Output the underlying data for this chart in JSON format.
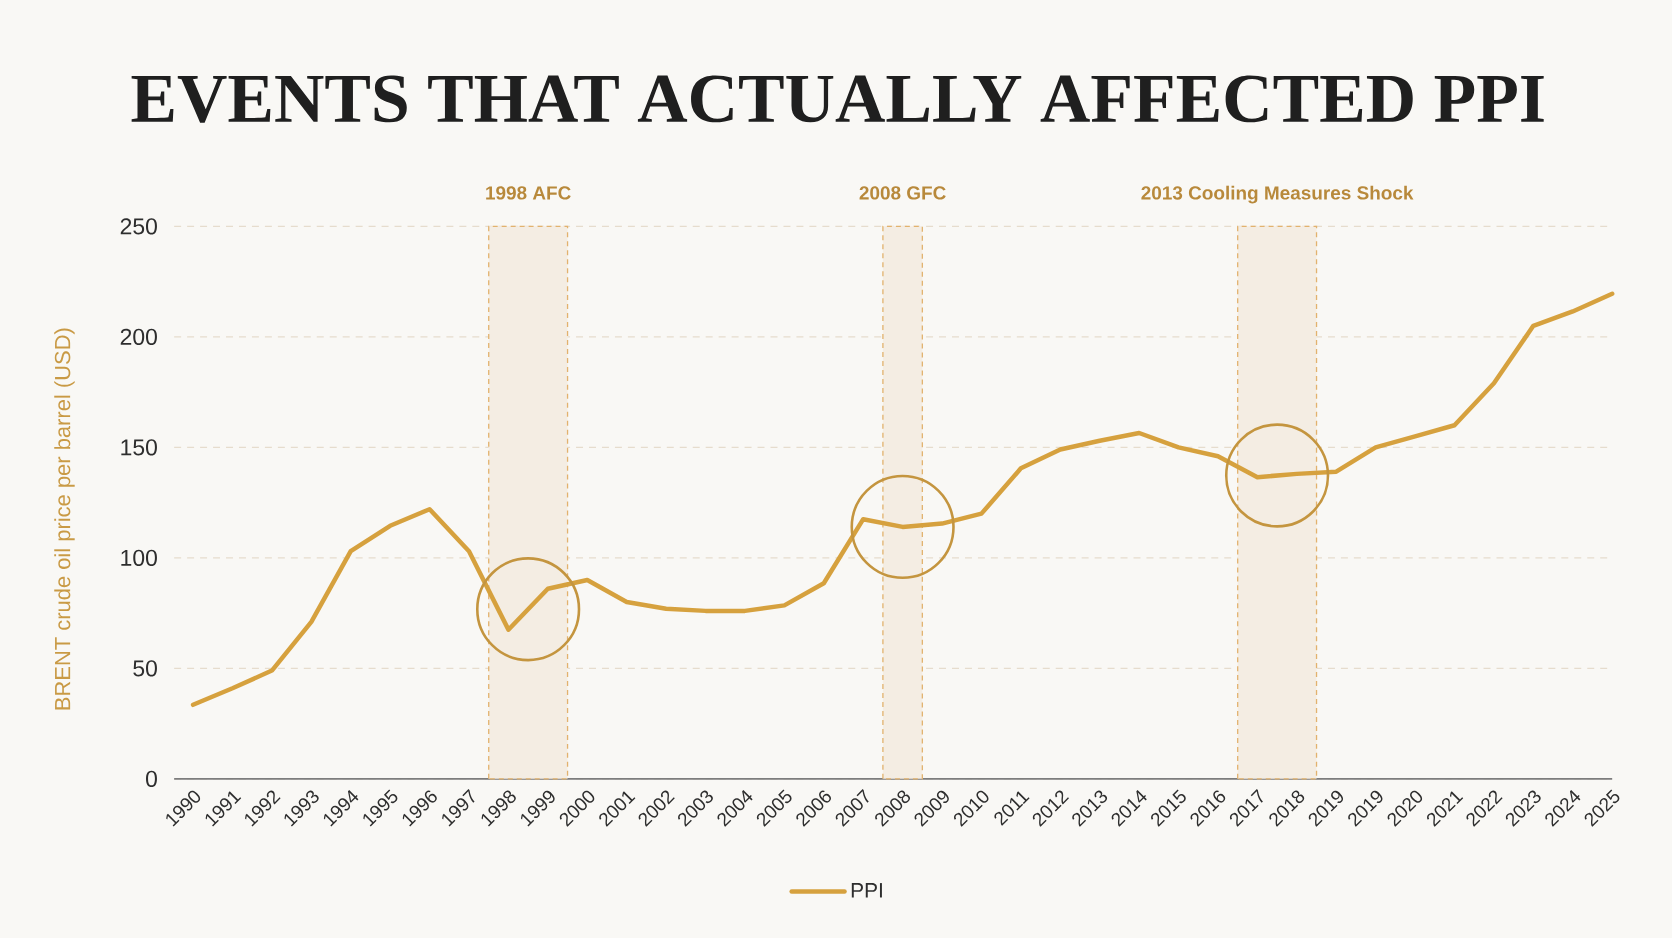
{
  "chart_data": {
    "type": "line",
    "title": "EVENTS THAT ACTUALLY AFFECTED PPI",
    "ylabel": "BRENT crude oil price per barrel (USD)",
    "categories": [
      "1990",
      "1991",
      "1992",
      "1993",
      "1994",
      "1995",
      "1996",
      "1997",
      "1998",
      "1999",
      "2000",
      "2001",
      "2002",
      "2003",
      "2004",
      "2005",
      "2006",
      "2007",
      "2008",
      "2009",
      "2010",
      "2011",
      "2012",
      "2013",
      "2014",
      "2015",
      "2016",
      "2017",
      "2018",
      "2019",
      "2019",
      "2020",
      "2021",
      "2022",
      "2023",
      "2024",
      "2025"
    ],
    "series": [
      {
        "name": "PPI",
        "color": "#d6a13e",
        "values": [
          33.5,
          41,
          49,
          71,
          103,
          114.5,
          122,
          103,
          67.5,
          86,
          90,
          80,
          77,
          76,
          76,
          78.5,
          88.5,
          117.5,
          114,
          115.5,
          120,
          140.5,
          149,
          153,
          156.5,
          150,
          146,
          136.5,
          138,
          139,
          150,
          155,
          160,
          179,
          205,
          211.5,
          219.5
        ]
      }
    ],
    "ylim": [
      0,
      250
    ],
    "yticks": [
      0,
      50,
      100,
      150,
      200,
      250
    ],
    "grid": "y",
    "legend": "bottom",
    "marker": "none",
    "line_style": "solid",
    "bands": [
      {
        "axis": "x",
        "from": "1998",
        "to": "1999",
        "label": "1998 AFC",
        "color": "#f4ede3"
      },
      {
        "axis": "x",
        "from": "2008",
        "to": "2008",
        "label": "2008 GFC",
        "color": "#f4ede3"
      },
      {
        "axis": "x",
        "from": "2017",
        "to": "2018",
        "label": "2013 Cooling Measures Shock",
        "color": "#f4ede3"
      }
    ]
  }
}
